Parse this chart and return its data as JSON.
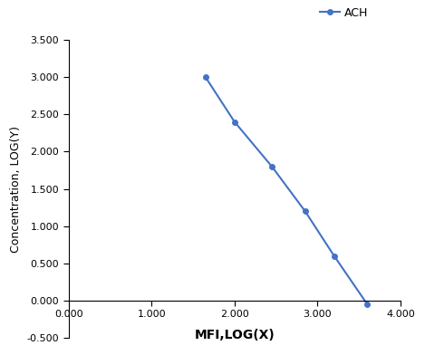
{
  "x_values": [
    1.65,
    2.0,
    2.45,
    2.85,
    3.2,
    3.6
  ],
  "y_values": [
    3.0,
    2.4,
    1.8,
    1.2,
    0.6,
    -0.05
  ],
  "line_color": "#4472C4",
  "marker": "o",
  "marker_size": 4,
  "line_width": 1.5,
  "legend_label": "ACH",
  "xlabel": "MFI,LOG(X)",
  "ylabel": "Concentration, LOG(Y)",
  "xlim": [
    0.0,
    4.0
  ],
  "ylim": [
    -0.5,
    3.5
  ],
  "xticks": [
    0.0,
    1.0,
    2.0,
    3.0,
    4.0
  ],
  "yticks": [
    -0.5,
    0.0,
    0.5,
    1.0,
    1.5,
    2.0,
    2.5,
    3.0,
    3.5
  ],
  "background_color": "#ffffff",
  "xlabel_fontsize": 10,
  "ylabel_fontsize": 9,
  "tick_label_fontsize": 8,
  "legend_fontsize": 9
}
